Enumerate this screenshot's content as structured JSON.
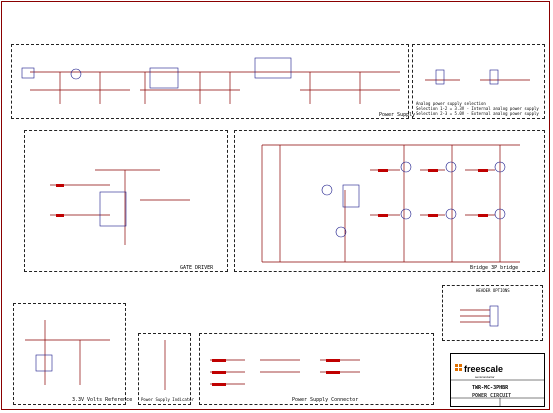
{
  "regions": {
    "power_supply": "Power Supply",
    "gate_driver": "GATE DRIVER",
    "bridge": "Bridge 3P bridge",
    "ref": "3.3V Volts Reference",
    "indicator": "Power Supply Indicator",
    "connector": "Power Supply Connector",
    "analog_sel": "HEADER OPTIONS"
  },
  "analog_note": {
    "title": "Analog power supply selection",
    "line1": "Selection 1-2 = 3.3V - Internal analog power supply",
    "line2": "Selection 2-3 = 5.0V - External analog power supply"
  },
  "title_block": {
    "brand": "freescale",
    "brand_sub": "semiconductor",
    "project": "TWR-MC-3PHBR",
    "sheet_title": "POWER CIRCUIT"
  },
  "colors": {
    "wire": "#8a0000",
    "part": "#1a1a8a",
    "frame": "#8a0000"
  }
}
